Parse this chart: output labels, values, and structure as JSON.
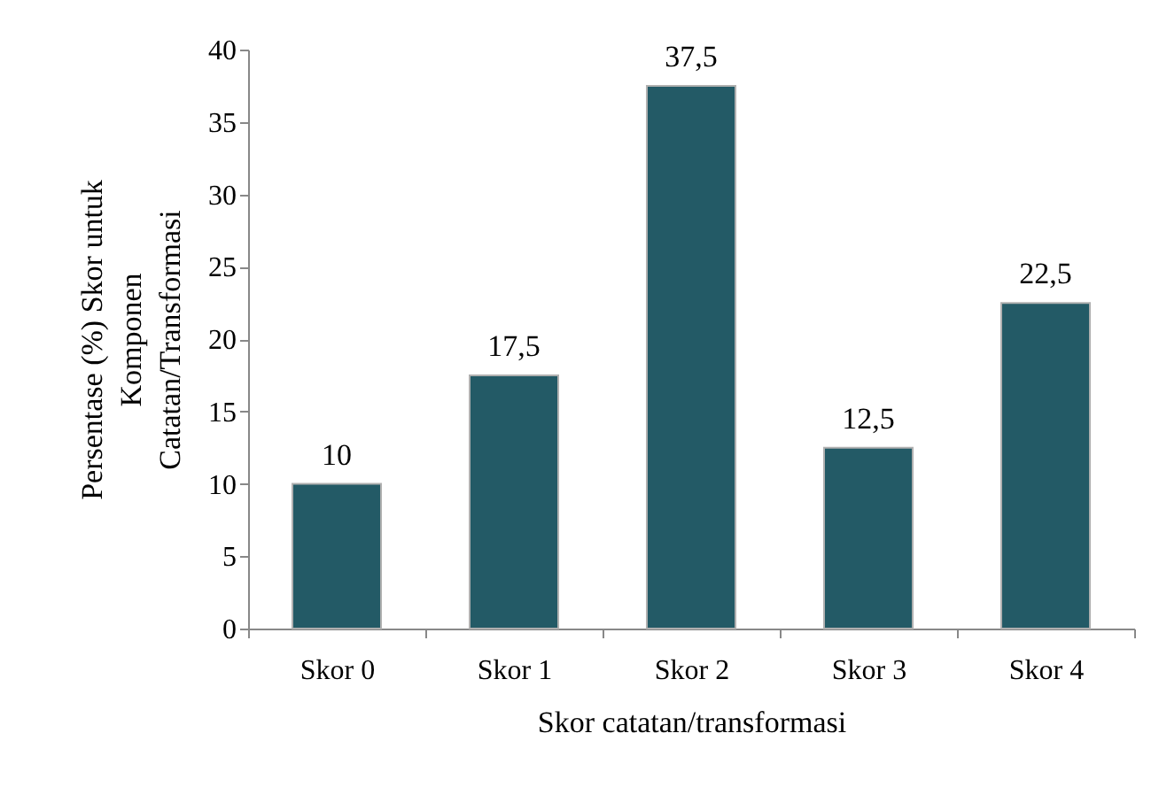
{
  "chart_data": {
    "type": "bar",
    "xlabel": "Skor catatan/transformasi",
    "ylabel": "Persentase (%) Skor untuk\nKomponen\nCatatan/Transformasi",
    "categories": [
      "Skor 0",
      "Skor 1",
      "Skor 2",
      "Skor 3",
      "Skor 4"
    ],
    "values": [
      10,
      17.5,
      37.5,
      12.5,
      22.5
    ],
    "value_labels": [
      "10",
      "17,5",
      "37,5",
      "12,5",
      "22,5"
    ],
    "color": "#235a66",
    "ylim": [
      0,
      40
    ],
    "yticks": [
      0,
      5,
      10,
      15,
      20,
      25,
      30,
      35,
      40
    ],
    "grid": false
  }
}
